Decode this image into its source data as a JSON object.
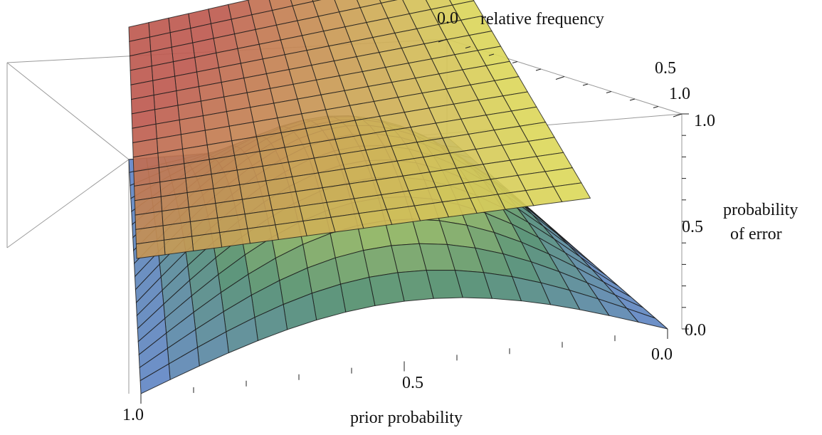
{
  "chart_data": {
    "type": "surface3d",
    "x_axis": {
      "label": "prior probability",
      "range": [
        0,
        1
      ],
      "ticks": [
        {
          "v": 1.0,
          "label": "1.0"
        },
        {
          "v": 0.5,
          "label": "0.5"
        },
        {
          "v": 0.0,
          "label": "0.0"
        }
      ]
    },
    "y_axis": {
      "label": "relative frequency",
      "range": [
        0,
        1
      ],
      "ticks": [
        {
          "v": 0.0,
          "label": "0.0"
        },
        {
          "v": 0.5,
          "label": "0.5"
        },
        {
          "v": 1.0,
          "label": "1.0"
        }
      ]
    },
    "z_axis": {
      "label_line1": "probability",
      "label_line2": "of error",
      "range": [
        0,
        1
      ],
      "ticks": [
        {
          "v": 1.0,
          "label": "1.0"
        },
        {
          "v": 0.5,
          "label": "0.5"
        },
        {
          "v": 0.0,
          "label": "0.0"
        }
      ]
    },
    "surfaces": [
      {
        "formula": "min(p, 1-p) plane family",
        "description_hidden": true
      },
      {
        "formula": "p*(1-p)*4*f*(1-f)",
        "description_hidden": true
      }
    ],
    "colors": {
      "blue": "#6f8fd0",
      "green": "#86b34c",
      "yellow": "#e6e070",
      "red": "#c25c55",
      "box": "#9a9a9a",
      "mesh": "#1b1b1b"
    }
  }
}
